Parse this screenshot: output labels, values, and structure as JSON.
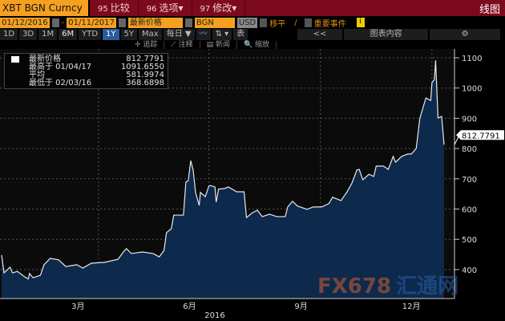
{
  "header": {
    "ticker": "XBT BGN Curncy",
    "menu": [
      {
        "num": "95",
        "label": "比较"
      },
      {
        "num": "96",
        "label": "选项▾"
      },
      {
        "num": "97",
        "label": "修改▾"
      }
    ],
    "view": "线图"
  },
  "controls": {
    "start_date": "01/12/2016",
    "dash": "-",
    "end_date": "01/11/2017",
    "field": "最新价格",
    "source": "BGN",
    "currency": "USD",
    "move_avg": "移平",
    "events": "重要事件"
  },
  "ranges": {
    "items": [
      "1D",
      "3D",
      "1M",
      "6M",
      "YTD",
      "1Y",
      "5Y",
      "Max"
    ],
    "selected": "1Y",
    "frequency": "每日 ▼",
    "table": "表",
    "collapse": "<<",
    "chart_content": "图表内容"
  },
  "tools": [
    "✛ 追踪",
    "⟋ 注释",
    "▤ 新闻",
    "🔍 缩放"
  ],
  "legend": [
    {
      "label": "最新价格",
      "value": "812.7791"
    },
    {
      "label": "最高于 01/04/17",
      "value": "1091.6550"
    },
    {
      "label": "平均",
      "value": "581.9974"
    },
    {
      "label": "最低于 02/03/16",
      "value": "368.6898"
    }
  ],
  "watermark": {
    "text": "FX678",
    "cn": "汇通网"
  },
  "chart_data": {
    "type": "area",
    "x_range": [
      "2016-01-12",
      "2017-01-11"
    ],
    "ylim": [
      305,
      1150
    ],
    "yticks": [
      400,
      500,
      600,
      700,
      800,
      900,
      1000,
      1100
    ],
    "xtick_labels": [
      "3月",
      "6月",
      "9月",
      "12月"
    ],
    "year_label": "2016",
    "last_value_label": "812.7791",
    "grid": true,
    "colors": {
      "line": "#e8e8e8",
      "fill": "#0d2a4d"
    },
    "points": [
      [
        "2016-01-12",
        448
      ],
      [
        "2016-01-14",
        389
      ],
      [
        "2016-01-19",
        408
      ],
      [
        "2016-01-21",
        389
      ],
      [
        "2016-01-25",
        394
      ],
      [
        "2016-01-31",
        376
      ],
      [
        "2016-02-03",
        369
      ],
      [
        "2016-02-04",
        387
      ],
      [
        "2016-02-07",
        373
      ],
      [
        "2016-02-13",
        381
      ],
      [
        "2016-02-16",
        416
      ],
      [
        "2016-02-18",
        424
      ],
      [
        "2016-02-21",
        437
      ],
      [
        "2016-02-28",
        432
      ],
      [
        "2016-03-05",
        410
      ],
      [
        "2016-03-14",
        416
      ],
      [
        "2016-03-19",
        405
      ],
      [
        "2016-03-26",
        421
      ],
      [
        "2016-04-06",
        424
      ],
      [
        "2016-04-17",
        434
      ],
      [
        "2016-04-22",
        461
      ],
      [
        "2016-04-24",
        469
      ],
      [
        "2016-04-28",
        453
      ],
      [
        "2016-05-07",
        458
      ],
      [
        "2016-05-16",
        453
      ],
      [
        "2016-05-21",
        442
      ],
      [
        "2016-05-25",
        463
      ],
      [
        "2016-05-27",
        522
      ],
      [
        "2016-05-31",
        535
      ],
      [
        "2016-06-02",
        580
      ],
      [
        "2016-06-10",
        580
      ],
      [
        "2016-06-12",
        689
      ],
      [
        "2016-06-14",
        694
      ],
      [
        "2016-06-16",
        760
      ],
      [
        "2016-06-18",
        729
      ],
      [
        "2016-06-20",
        655
      ],
      [
        "2016-06-23",
        612
      ],
      [
        "2016-06-24",
        655
      ],
      [
        "2016-06-28",
        641
      ],
      [
        "2016-07-01",
        676
      ],
      [
        "2016-07-02",
        678
      ],
      [
        "2016-07-06",
        673
      ],
      [
        "2016-07-07",
        623
      ],
      [
        "2016-07-09",
        666
      ],
      [
        "2016-07-14",
        668
      ],
      [
        "2016-07-17",
        673
      ],
      [
        "2016-07-24",
        657
      ],
      [
        "2016-07-30",
        657
      ],
      [
        "2016-08-01",
        572
      ],
      [
        "2016-08-06",
        588
      ],
      [
        "2016-08-10",
        596
      ],
      [
        "2016-08-14",
        575
      ],
      [
        "2016-08-20",
        583
      ],
      [
        "2016-08-26",
        575
      ],
      [
        "2016-09-02",
        575
      ],
      [
        "2016-09-04",
        607
      ],
      [
        "2016-09-08",
        626
      ],
      [
        "2016-09-12",
        610
      ],
      [
        "2016-09-20",
        599
      ],
      [
        "2016-09-25",
        607
      ],
      [
        "2016-10-02",
        607
      ],
      [
        "2016-10-08",
        618
      ],
      [
        "2016-10-11",
        639
      ],
      [
        "2016-10-18",
        628
      ],
      [
        "2016-10-23",
        657
      ],
      [
        "2016-10-27",
        686
      ],
      [
        "2016-10-31",
        729
      ],
      [
        "2016-11-02",
        731
      ],
      [
        "2016-11-05",
        697
      ],
      [
        "2016-11-10",
        715
      ],
      [
        "2016-11-14",
        708
      ],
      [
        "2016-11-16",
        742
      ],
      [
        "2016-11-22",
        742
      ],
      [
        "2016-11-26",
        731
      ],
      [
        "2016-11-30",
        774
      ],
      [
        "2016-12-02",
        755
      ],
      [
        "2016-12-07",
        774
      ],
      [
        "2016-12-12",
        782
      ],
      [
        "2016-12-15",
        782
      ],
      [
        "2016-12-19",
        800
      ],
      [
        "2016-12-22",
        900
      ],
      [
        "2016-12-27",
        967
      ],
      [
        "2016-12-31",
        959
      ],
      [
        "2017-01-01",
        1018
      ],
      [
        "2017-01-03",
        1028
      ],
      [
        "2017-01-04",
        1091.655
      ],
      [
        "2017-01-06",
        901
      ],
      [
        "2017-01-09",
        906
      ],
      [
        "2017-01-11",
        812.7791
      ]
    ]
  }
}
